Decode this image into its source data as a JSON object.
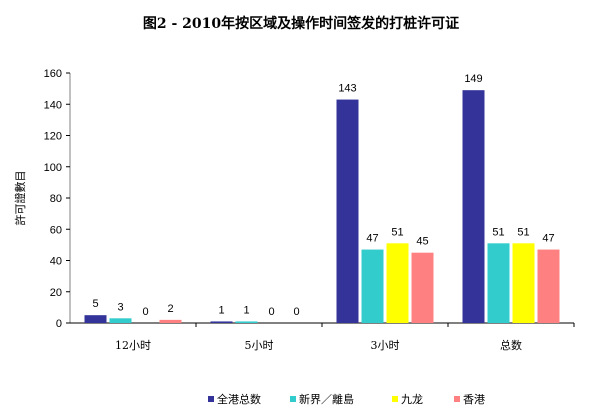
{
  "chart_data": {
    "type": "bar",
    "title": "图2 - 2010年按区域及操作时间签发的打桩许可证",
    "xlabel": "",
    "ylabel": "許可證數目",
    "ylim": [
      0,
      160
    ],
    "yticks": [
      0,
      20,
      40,
      60,
      80,
      100,
      120,
      140,
      160
    ],
    "grid": false,
    "legend": "bottom",
    "categories": [
      "12小时",
      "5小时",
      "3小时",
      "总数"
    ],
    "series": [
      {
        "name": "全港总数",
        "color": "#333399",
        "values": [
          5,
          1,
          143,
          149
        ]
      },
      {
        "name": "新界／離島",
        "color": "#33CCCC",
        "values": [
          3,
          1,
          47,
          51
        ]
      },
      {
        "name": "九龙",
        "color": "#FFFF00",
        "values": [
          0,
          0,
          51,
          51
        ]
      },
      {
        "name": "香港",
        "color": "#FF8080",
        "values": [
          2,
          0,
          45,
          47
        ]
      }
    ]
  }
}
